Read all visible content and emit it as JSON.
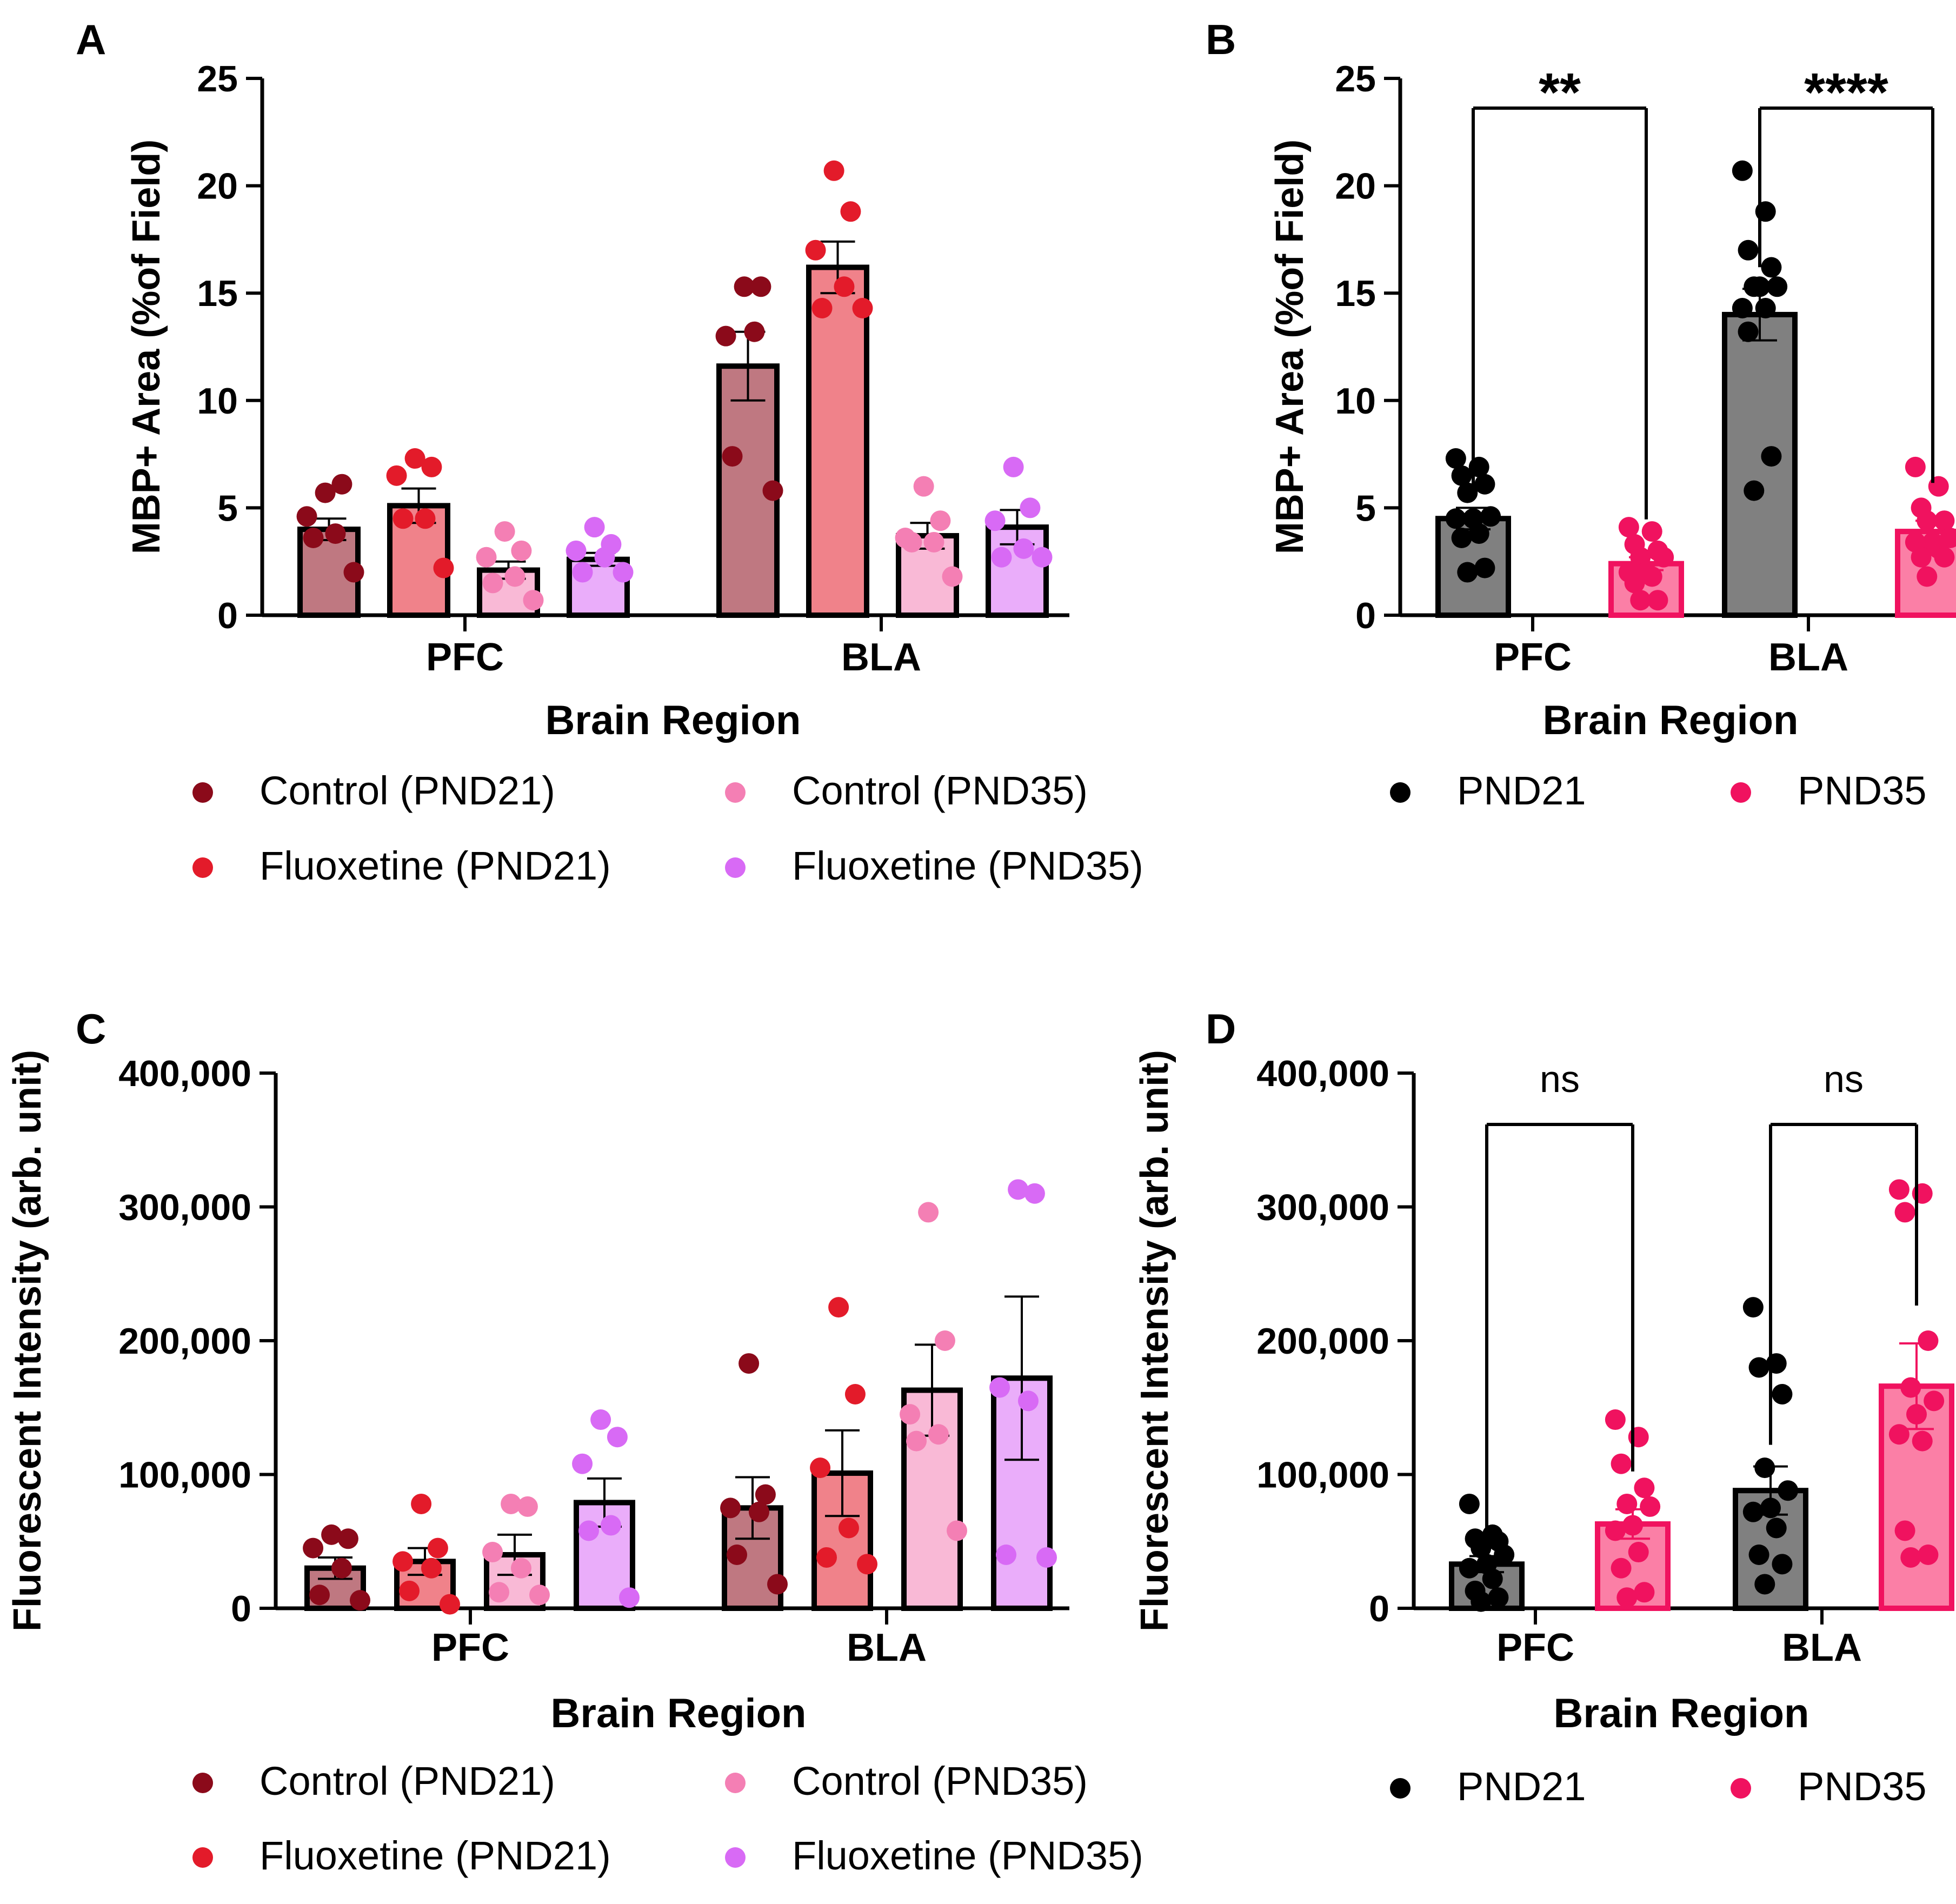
{
  "figure": {
    "colors": {
      "control_pnd21": "#8b0a1a",
      "fluoxetine_pnd21": "#e31b2a",
      "control_pnd35": "#f47fb4",
      "fluoxetine_pnd35": "#d86af5",
      "pnd21": "#000000",
      "pnd35": "#f0125f"
    },
    "legend_4": {
      "control_pnd21": "Control (PND21)",
      "fluoxetine_pnd21": "Fluoxetine (PND21)",
      "control_pnd35": "Control (PND35)",
      "fluoxetine_pnd35": "Fluoxetine (PND35)"
    },
    "legend_2": {
      "pnd21": "PND21",
      "pnd35": "PND35"
    }
  },
  "chart_data": [
    {
      "panel": "A",
      "type": "bar",
      "xlabel": "Brain Region",
      "ylabel": "MBP+ Area (%of Field)",
      "ylim": [
        0,
        25
      ],
      "yticks": [
        "0",
        "5",
        "10",
        "15",
        "20",
        "25"
      ],
      "categories": [
        "PFC",
        "BLA"
      ],
      "series": [
        {
          "name": "Control (PND21)",
          "key": "control_pnd21",
          "values": [
            4.0,
            11.6
          ],
          "sem": [
            0.5,
            1.6
          ],
          "points": [
            [
              5.7,
              6.1,
              4.6,
              3.8,
              3.6,
              2.0
            ],
            [
              15.3,
              15.3,
              13.0,
              13.2,
              7.4,
              5.8
            ]
          ]
        },
        {
          "name": "Fluoxetine (PND21)",
          "key": "fluoxetine_pnd21",
          "values": [
            5.1,
            16.2
          ],
          "sem": [
            0.8,
            1.2
          ],
          "points": [
            [
              7.3,
              6.9,
              6.5,
              4.5,
              4.5,
              2.2
            ],
            [
              20.7,
              18.8,
              17.0,
              15.3,
              14.3,
              14.3
            ]
          ]
        },
        {
          "name": "Control (PND35)",
          "key": "control_pnd35",
          "values": [
            2.1,
            3.7
          ],
          "sem": [
            0.4,
            0.6
          ],
          "points": [
            [
              3.9,
              3.0,
              2.7,
              1.8,
              1.5,
              0.7
            ],
            [
              6.0,
              4.4,
              3.6,
              3.4,
              3.4,
              1.8
            ]
          ]
        },
        {
          "name": "Fluoxetine (PND35)",
          "key": "fluoxetine_pnd35",
          "values": [
            2.6,
            4.1
          ],
          "sem": [
            0.3,
            0.8
          ],
          "points": [
            [
              4.1,
              3.3,
              3.0,
              2.7,
              2.0,
              2.0
            ],
            [
              6.9,
              5.0,
              4.4,
              3.1,
              2.7,
              2.7
            ]
          ]
        }
      ]
    },
    {
      "panel": "B",
      "type": "bar",
      "xlabel": "Brain Region",
      "ylabel": "MBP+ Area (%of Field)",
      "ylim": [
        0,
        25
      ],
      "yticks": [
        "0",
        "5",
        "10",
        "15",
        "20",
        "25"
      ],
      "categories": [
        "PFC",
        "BLA"
      ],
      "significance": [
        "**",
        "****"
      ],
      "series": [
        {
          "name": "PND21",
          "key": "pnd21",
          "values": [
            4.5,
            14.0
          ],
          "sem": [
            0.5,
            1.2
          ],
          "points": [
            [
              7.3,
              6.9,
              6.5,
              6.1,
              5.7,
              4.6,
              4.5,
              4.5,
              3.8,
              3.6,
              2.2,
              2.0
            ],
            [
              20.7,
              18.8,
              17.0,
              16.2,
              15.3,
              15.3,
              15.3,
              14.3,
              14.3,
              13.2,
              7.4,
              5.8
            ]
          ]
        },
        {
          "name": "PND35",
          "key": "pnd35",
          "values": [
            2.4,
            3.9
          ],
          "sem": [
            0.3,
            0.5
          ],
          "points": [
            [
              4.1,
              3.9,
              3.3,
              3.0,
              2.7,
              2.7,
              2.0,
              2.0,
              1.8,
              1.5,
              0.7,
              0.7
            ],
            [
              6.9,
              6.0,
              5.0,
              4.4,
              4.4,
              3.6,
              3.4,
              3.4,
              3.1,
              2.7,
              2.7,
              1.8
            ]
          ]
        }
      ]
    },
    {
      "panel": "C",
      "type": "bar",
      "xlabel": "Brain Region",
      "ylabel": "Fluorescent Intensity (arb. unit)",
      "ylim": [
        0,
        400000
      ],
      "yticks": [
        "0",
        "100,000",
        "200,000",
        "300,000",
        "400,000"
      ],
      "categories": [
        "PFC",
        "BLA"
      ],
      "series": [
        {
          "name": "Control (PND21)",
          "key": "control_pnd21",
          "values": [
            30000,
            75000
          ],
          "sem": [
            8000,
            23000
          ],
          "points": [
            [
              55000,
              52000,
              45000,
              30000,
              10000,
              6000
            ],
            [
              183000,
              85000,
              75000,
              72000,
              40000,
              18000
            ]
          ]
        },
        {
          "name": "Fluoxetine (PND21)",
          "key": "fluoxetine_pnd21",
          "values": [
            35000,
            101000
          ],
          "sem": [
            10000,
            32000
          ],
          "points": [
            [
              78000,
              45000,
              35000,
              30000,
              13000,
              3000
            ],
            [
              225000,
              160000,
              105000,
              60000,
              38000,
              33000
            ]
          ]
        },
        {
          "name": "Control (PND35)",
          "key": "control_pnd35",
          "values": [
            40000,
            163000
          ],
          "sem": [
            15000,
            34000
          ],
          "points": [
            [
              78000,
              76000,
              42000,
              30000,
              12000,
              10000
            ],
            [
              296000,
              200000,
              145000,
              130000,
              125000,
              58000
            ]
          ]
        },
        {
          "name": "Fluoxetine (PND35)",
          "key": "fluoxetine_pnd35",
          "values": [
            79000,
            172000
          ],
          "sem": [
            18000,
            61000
          ],
          "points": [
            [
              141000,
              128000,
              108000,
              62000,
              58000,
              8000
            ],
            [
              313000,
              310000,
              165000,
              155000,
              40000,
              38000
            ]
          ]
        }
      ]
    },
    {
      "panel": "D",
      "type": "bar",
      "xlabel": "Brain Region",
      "ylabel": "Fluorescent Intensity (arb. unit)",
      "ylim": [
        0,
        400000
      ],
      "yticks": [
        "0",
        "100,000",
        "200,000",
        "300,000",
        "400,000"
      ],
      "categories": [
        "PFC",
        "BLA"
      ],
      "significance": [
        "ns",
        "ns"
      ],
      "series": [
        {
          "name": "PND21",
          "key": "pnd21",
          "values": [
            33000,
            88000
          ],
          "sem": [
            6000,
            18000
          ],
          "points": [
            [
              78000,
              55000,
              52000,
              50000,
              45000,
              40000,
              33000,
              30000,
              22000,
              13000,
              8000,
              5000
            ],
            [
              225000,
              183000,
              180000,
              160000,
              105000,
              88000,
              75000,
              72000,
              60000,
              40000,
              33000,
              18000
            ]
          ]
        },
        {
          "name": "PND35",
          "key": "pnd35",
          "values": [
            63000,
            166000
          ],
          "sem": [
            11000,
            32000
          ],
          "points": [
            [
              141000,
              128000,
              108000,
              90000,
              78000,
              76000,
              62000,
              58000,
              42000,
              30000,
              12000,
              8000
            ],
            [
              313000,
              310000,
              296000,
              200000,
              165000,
              155000,
              145000,
              130000,
              125000,
              58000,
              40000,
              38000
            ]
          ]
        }
      ]
    }
  ]
}
